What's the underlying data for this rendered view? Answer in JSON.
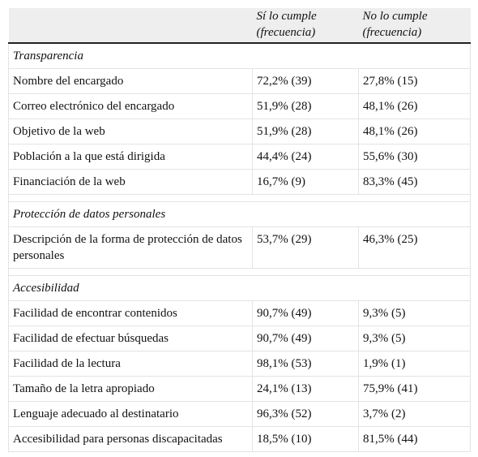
{
  "header": {
    "col_yes_line1": "Sí lo cumple",
    "col_yes_line2": "(frecuencia)",
    "col_no_line1": "No lo cumple",
    "col_no_line2": "(frecuencia)"
  },
  "sections": [
    {
      "title": "Transparencia",
      "rows": [
        {
          "label": "Nombre del encargado",
          "yes": "72,2% (39)",
          "no": "27,8% (15)"
        },
        {
          "label": "Correo electrónico del encargado",
          "yes": "51,9% (28)",
          "no": "48,1% (26)"
        },
        {
          "label": "Objetivo de la web",
          "yes": "51,9% (28)",
          "no": "48,1% (26)"
        },
        {
          "label": "Población a la que está dirigida",
          "yes": "44,4% (24)",
          "no": "55,6% (30)"
        },
        {
          "label": "Financiación de la web",
          "yes": "16,7% (9)",
          "no": "83,3% (45)"
        }
      ]
    },
    {
      "title": "Protección de datos personales",
      "rows": [
        {
          "label": "Descripción de la forma de protección de datos personales",
          "yes": "53,7% (29)",
          "no": "46,3% (25)"
        }
      ]
    },
    {
      "title": "Accesibilidad",
      "rows": [
        {
          "label": "Facilidad de encontrar contenidos",
          "yes": "90,7% (49)",
          "no": "9,3% (5)"
        },
        {
          "label": "Facilidad de efectuar búsquedas",
          "yes": "90,7% (49)",
          "no": "9,3% (5)"
        },
        {
          "label": "Facilidad de la lectura",
          "yes": "98,1% (53)",
          "no": "1,9% (1)"
        },
        {
          "label": "Tamaño de la letra apropiado",
          "yes": "24,1% (13)",
          "no": "75,9% (41)"
        },
        {
          "label": "Lenguaje adecuado al destinatario",
          "yes": "96,3% (52)",
          "no": "3,7% (2)"
        },
        {
          "label": "Accesibilidad para personas discapacitadas",
          "yes": "18,5% (10)",
          "no": "81,5% (44)"
        }
      ]
    }
  ]
}
